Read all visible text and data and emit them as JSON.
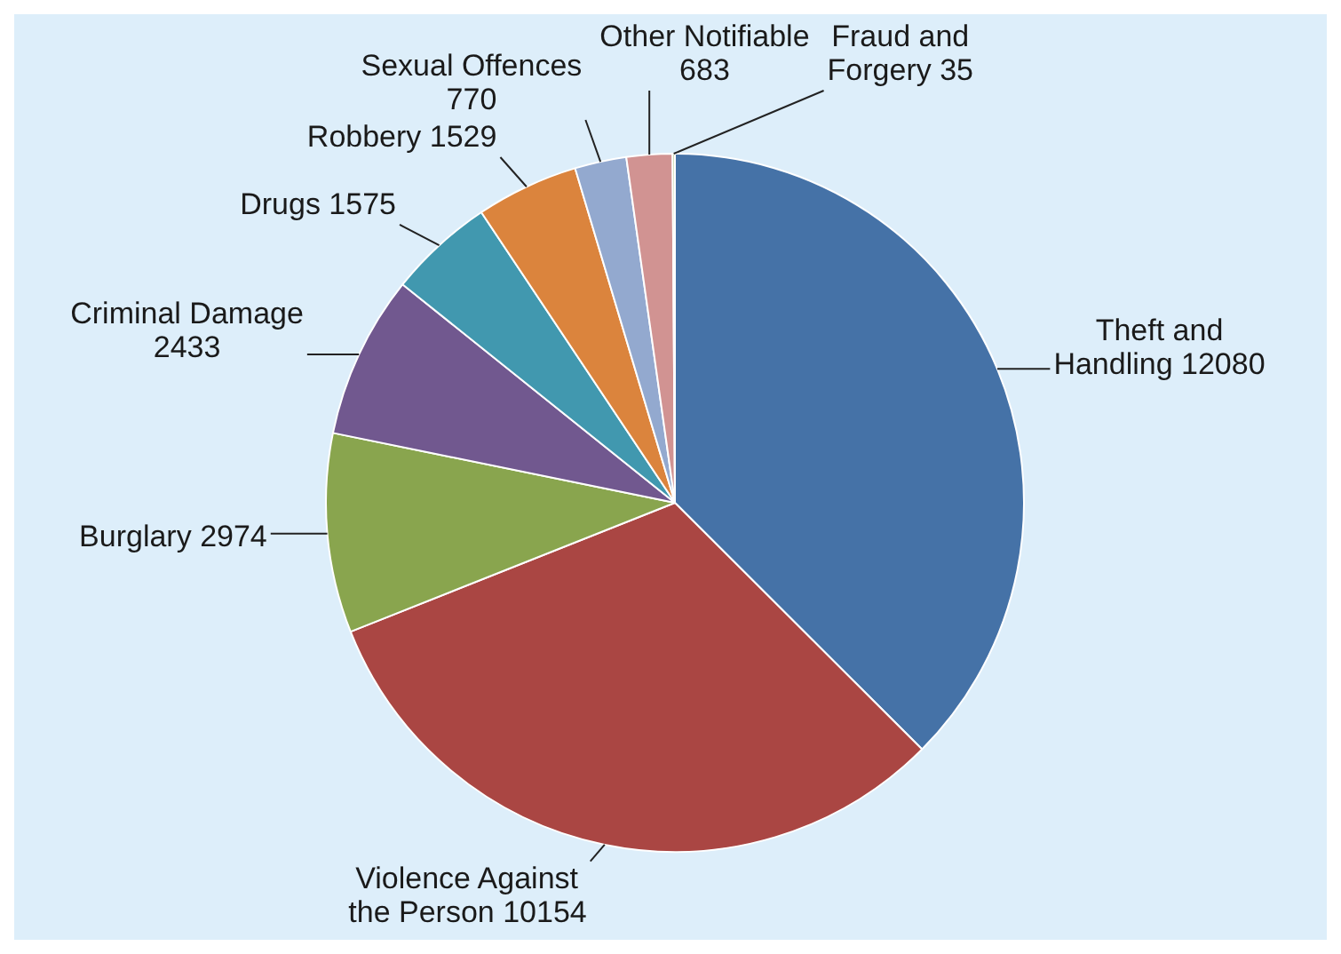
{
  "chart_data": {
    "type": "pie",
    "categories": [
      "Theft and Handling",
      "Violence Against the Person",
      "Burglary",
      "Criminal Damage",
      "Drugs",
      "Robbery",
      "Sexual Offences",
      "Other Notifiable",
      "Fraud and Forgery"
    ],
    "values": [
      12080,
      10154,
      2974,
      2433,
      1575,
      1529,
      770,
      683,
      35
    ],
    "colors": [
      "#4572a7",
      "#aa4643",
      "#89a54e",
      "#71588f",
      "#4198af",
      "#db843d",
      "#93a9cf",
      "#d19392",
      "#b9cd96"
    ],
    "data_labels": true,
    "legend": false
  }
}
